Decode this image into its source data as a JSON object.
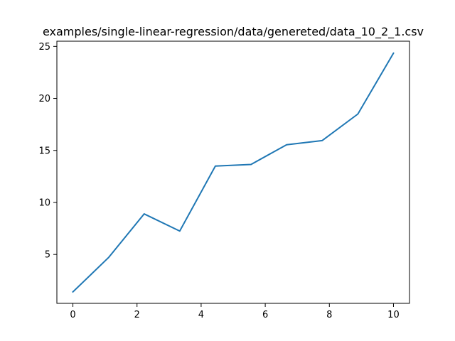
{
  "chart_data": {
    "type": "line",
    "title": "examples/single-linear-regression/data/genereted/data_10_2_1.csv",
    "xlabel": "",
    "ylabel": "",
    "xlim": [
      -0.5,
      10.5
    ],
    "ylim": [
      0.3,
      25.5
    ],
    "x_ticks": [
      0,
      2,
      4,
      6,
      8,
      10
    ],
    "y_ticks": [
      5,
      10,
      15,
      20,
      25
    ],
    "grid": false,
    "series": [
      {
        "color": "#1f77b4",
        "x": [
          0,
          1.111,
          2.222,
          3.333,
          4.444,
          5.556,
          6.667,
          7.778,
          8.889,
          10
        ],
        "y": [
          1.4,
          4.7,
          8.9,
          7.25,
          13.5,
          13.65,
          15.55,
          15.95,
          18.5,
          24.35
        ]
      }
    ]
  }
}
